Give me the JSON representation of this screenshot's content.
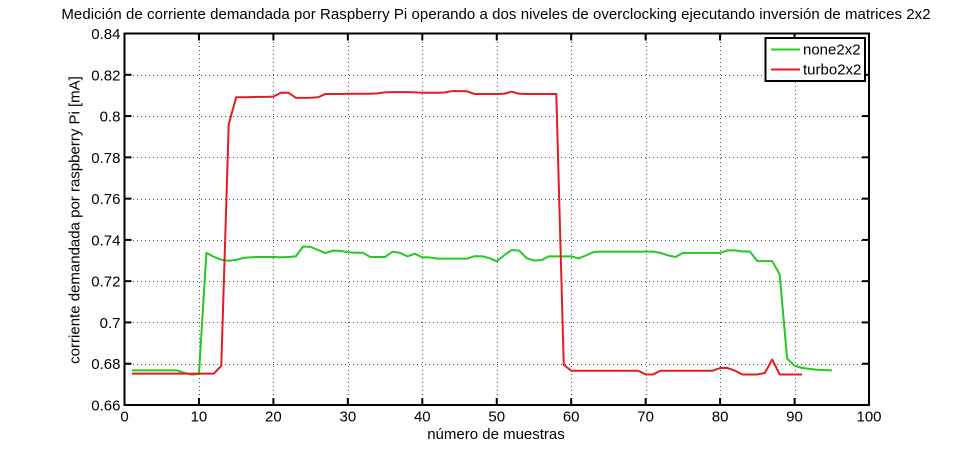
{
  "chart_data": {
    "type": "line",
    "title": "Medición de corriente demandada por Raspberry Pi operando a dos niveles de overclocking ejecutando inversión de matrices 2x2",
    "xlabel": "número de muestras",
    "ylabel": "corriente demandada por raspberry Pi [mA]",
    "xlim": [
      0,
      100
    ],
    "ylim": [
      0.66,
      0.84
    ],
    "xticks": [
      0,
      10,
      20,
      30,
      40,
      50,
      60,
      70,
      80,
      90,
      100
    ],
    "xtick_labels": [
      "0",
      "10",
      "20",
      "30",
      "40",
      "50",
      "60",
      "70",
      "80",
      "90",
      "100"
    ],
    "yticks": [
      0.66,
      0.68,
      0.7,
      0.72,
      0.74,
      0.76,
      0.78,
      0.8,
      0.82,
      0.84
    ],
    "ytick_labels": [
      "0.66",
      "0.68",
      "0.7",
      "0.72",
      "0.74",
      "0.76",
      "0.78",
      "0.8",
      "0.82",
      "0.84"
    ],
    "grid": true,
    "grid_style": "dotted",
    "legend_position": "top-right",
    "axis_color": "#000000",
    "grid_color": "#4d4d4d",
    "background_color": "#ffffff",
    "series": [
      {
        "name": "none2x2",
        "color": "#26c826",
        "x_start": 1,
        "x_step": 1,
        "values": [
          0.6768,
          0.6768,
          0.6768,
          0.6768,
          0.6768,
          0.6768,
          0.6768,
          0.6756,
          0.6747,
          0.675,
          0.7337,
          0.7318,
          0.7304,
          0.7299,
          0.7303,
          0.7313,
          0.7316,
          0.7317,
          0.7317,
          0.7317,
          0.7316,
          0.7317,
          0.732,
          0.7368,
          0.7366,
          0.7351,
          0.7336,
          0.7348,
          0.7347,
          0.734,
          0.7338,
          0.7338,
          0.7317,
          0.7317,
          0.7317,
          0.7343,
          0.7337,
          0.732,
          0.7333,
          0.7315,
          0.7315,
          0.7309,
          0.7309,
          0.7309,
          0.7309,
          0.7309,
          0.7321,
          0.7321,
          0.7312,
          0.7296,
          0.7325,
          0.7351,
          0.7348,
          0.7312,
          0.73,
          0.7302,
          0.732,
          0.732,
          0.732,
          0.732,
          0.731,
          0.7325,
          0.7341,
          0.7343,
          0.7343,
          0.7343,
          0.7343,
          0.7343,
          0.7343,
          0.7343,
          0.7343,
          0.7337,
          0.7325,
          0.7317,
          0.7337,
          0.7337,
          0.7337,
          0.7337,
          0.7337,
          0.7337,
          0.7349,
          0.7349,
          0.7344,
          0.7344,
          0.7297,
          0.7297,
          0.7297,
          0.7233,
          0.6825,
          0.679,
          0.678,
          0.6775,
          0.6771,
          0.6769,
          0.6768
        ]
      },
      {
        "name": "turbo2x2",
        "color": "#e01d23",
        "x_start": 1,
        "x_step": 1,
        "values": [
          0.6752,
          0.6752,
          0.6752,
          0.6752,
          0.6752,
          0.6752,
          0.6752,
          0.6752,
          0.6752,
          0.6752,
          0.6752,
          0.6752,
          0.679,
          0.796,
          0.8091,
          0.8091,
          0.8092,
          0.8093,
          0.8093,
          0.8094,
          0.8113,
          0.8113,
          0.8089,
          0.8088,
          0.8089,
          0.8091,
          0.8107,
          0.8107,
          0.8107,
          0.8108,
          0.8108,
          0.8108,
          0.8108,
          0.811,
          0.8115,
          0.8116,
          0.8116,
          0.8116,
          0.8115,
          0.8113,
          0.8113,
          0.8113,
          0.8114,
          0.8121,
          0.8121,
          0.812,
          0.8107,
          0.8107,
          0.8107,
          0.8107,
          0.8108,
          0.8118,
          0.8108,
          0.8107,
          0.8107,
          0.8107,
          0.8107,
          0.8107,
          0.6795,
          0.6766,
          0.6766,
          0.6766,
          0.6766,
          0.6766,
          0.6766,
          0.6766,
          0.6766,
          0.6766,
          0.6766,
          0.6748,
          0.6748,
          0.6766,
          0.6766,
          0.6766,
          0.6766,
          0.6766,
          0.6766,
          0.6766,
          0.6766,
          0.6779,
          0.6779,
          0.6766,
          0.6748,
          0.6748,
          0.6748,
          0.6755,
          0.682,
          0.6748,
          0.6748,
          0.6748,
          0.6748
        ]
      }
    ],
    "legend": {
      "entries": [
        {
          "label": "none2x2"
        },
        {
          "label": "turbo2x2"
        }
      ]
    }
  }
}
